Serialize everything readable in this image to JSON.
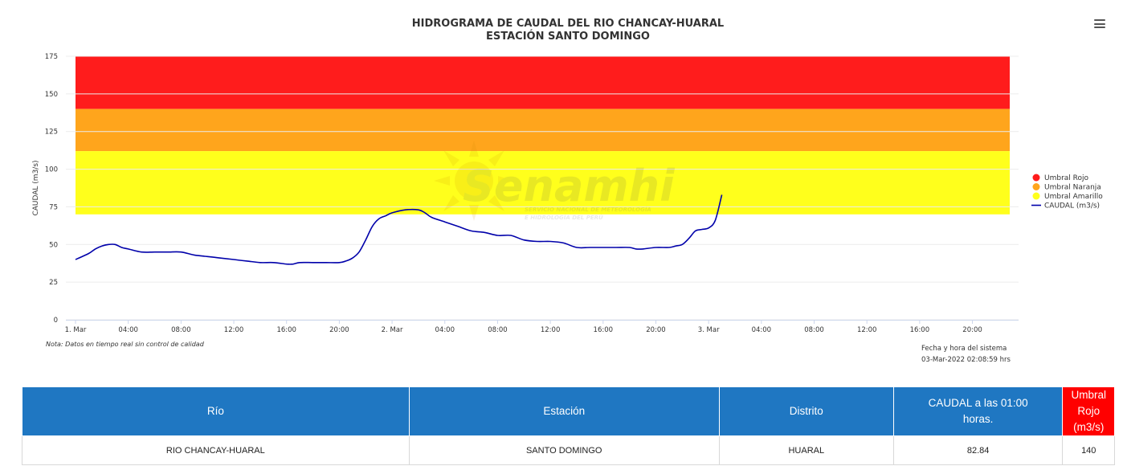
{
  "chart": {
    "title_line1": "HIDROGRAMA DE CAUDAL DEL RIO CHANCAY-HUARAL",
    "title_line2": "ESTACIÓN SANTO DOMINGO",
    "note": "Nota: Datos en tiempo real sin control de calidad",
    "system_label": "Fecha y hora del sistema",
    "system_datetime": "03-Mar-2022 02:08:59 hrs",
    "watermark_brand": "Senamhi",
    "watermark_line1": "SERVICIO NACIONAL DE METEOROLOGÍA",
    "watermark_line2": "E HIDROLOGÍA DEL PERÚ"
  },
  "chart_data": {
    "type": "line",
    "title": "HIDROGRAMA DE CAUDAL DEL RIO CHANCAY-HUARAL",
    "subtitle": "ESTACIÓN SANTO DOMINGO",
    "xlabel": "",
    "ylabel": "CAUDAL (m3/s)",
    "x_unit": "hours since 1 Mar 00:00",
    "xlim": [
      0,
      71
    ],
    "ylim": [
      0,
      175
    ],
    "y_ticks": [
      0,
      25,
      50,
      75,
      100,
      125,
      150,
      175
    ],
    "x_ticks": [
      {
        "x": 0,
        "label": "1. Mar"
      },
      {
        "x": 4,
        "label": "04:00"
      },
      {
        "x": 8,
        "label": "08:00"
      },
      {
        "x": 12,
        "label": "12:00"
      },
      {
        "x": 16,
        "label": "16:00"
      },
      {
        "x": 20,
        "label": "20:00"
      },
      {
        "x": 24,
        "label": "2. Mar"
      },
      {
        "x": 28,
        "label": "04:00"
      },
      {
        "x": 32,
        "label": "08:00"
      },
      {
        "x": 36,
        "label": "12:00"
      },
      {
        "x": 40,
        "label": "16:00"
      },
      {
        "x": 44,
        "label": "20:00"
      },
      {
        "x": 48,
        "label": "3. Mar"
      },
      {
        "x": 52,
        "label": "04:00"
      },
      {
        "x": 56,
        "label": "08:00"
      },
      {
        "x": 60,
        "label": "12:00"
      },
      {
        "x": 64,
        "label": "16:00"
      },
      {
        "x": 68,
        "label": "20:00"
      }
    ],
    "grid": true,
    "legend_position": "right",
    "bands": [
      {
        "name": "Umbral Rojo",
        "from": 140,
        "to": 175,
        "color": "#ff1c1c"
      },
      {
        "name": "Umbral Naranja",
        "from": 112,
        "to": 140,
        "color": "#ffa51c"
      },
      {
        "name": "Umbral Amarillo",
        "from": 70,
        "to": 112,
        "color": "#ffff1c"
      }
    ],
    "series": [
      {
        "name": "CAUDAL (m3/s)",
        "color": "#0000aa",
        "x": [
          0,
          1,
          1.5,
          2,
          2.5,
          3,
          3.5,
          4,
          5,
          6,
          7,
          8,
          9,
          10,
          11,
          12,
          13,
          14,
          15,
          16,
          16.5,
          17,
          18,
          19,
          20,
          20.5,
          21,
          21.5,
          22,
          22.5,
          23,
          23.5,
          24,
          25,
          26,
          26.5,
          27,
          28,
          29,
          30,
          31,
          32,
          33,
          34,
          35,
          36,
          37,
          38,
          39,
          40,
          41,
          42,
          42.5,
          43,
          44,
          45,
          45.5,
          46,
          46.5,
          47,
          47.5,
          48,
          48.5,
          49
        ],
        "y": [
          40,
          44,
          47,
          49,
          50,
          50,
          48,
          47,
          45,
          45,
          45,
          45,
          43,
          42,
          41,
          40,
          39,
          38,
          38,
          37,
          37,
          38,
          38,
          38,
          38,
          39,
          41,
          45,
          53,
          62,
          67,
          69,
          71,
          73,
          73,
          71,
          68,
          65,
          62,
          59,
          58,
          56,
          56,
          53,
          52,
          52,
          51,
          48,
          48,
          48,
          48,
          48,
          47,
          47,
          48,
          48,
          49,
          50,
          54,
          59,
          60,
          61,
          66,
          83
        ]
      }
    ]
  },
  "legend": {
    "items": [
      {
        "label": "Umbral Rojo",
        "color": "#ff1c1c",
        "kind": "dot"
      },
      {
        "label": "Umbral Naranja",
        "color": "#ffa51c",
        "kind": "dot"
      },
      {
        "label": "Umbral Amarillo",
        "color": "#ffff1c",
        "kind": "dot"
      },
      {
        "label": "CAUDAL (m3/s)",
        "color": "#0000aa",
        "kind": "line"
      }
    ]
  },
  "table": {
    "headers": [
      "Río",
      "Estación",
      "Distrito",
      "CAUDAL a las 01:00 horas.",
      "Umbral Rojo (m3/s)"
    ],
    "row": [
      "RIO CHANCAY-HUARAL",
      "SANTO DOMINGO",
      "HUARAL",
      "82.84",
      "140"
    ]
  }
}
